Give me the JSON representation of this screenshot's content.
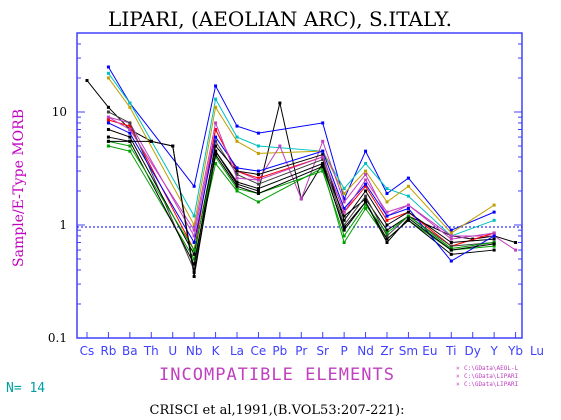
{
  "chart_data": {
    "type": "line",
    "title": "LIPARI, (AEOLIAN ARC), S.ITALY.",
    "ylabel": "Sample/E-Type MORB",
    "xlabel": "INCOMPATIBLE ELEMENTS",
    "footer": "CRISCI et al,1991,(B.VOL53:207-221):",
    "n_label": "N= 14",
    "yscale": "log",
    "ylim": [
      0.1,
      50
    ],
    "yticks": [
      0.1,
      1,
      10
    ],
    "ytick_labels": [
      "0.1",
      "1",
      "10"
    ],
    "reference_line": 1,
    "categories": [
      "Cs",
      "Rb",
      "Ba",
      "Th",
      "U",
      "Nb",
      "K",
      "La",
      "Ce",
      "Pb",
      "Pr",
      "Sr",
      "P",
      "Nd",
      "Zr",
      "Sm",
      "Eu",
      "Ti",
      "Dy",
      "Y",
      "Yb",
      "Lu"
    ],
    "legend": [
      {
        "label": "C:\\GData\\AEOL-L",
        "color": "#c040c0"
      },
      {
        "label": "C:\\GData\\LIPARI",
        "color": "#c040c0"
      },
      {
        "label": "C:\\GData\\LIPARI",
        "color": "#c040c0"
      }
    ],
    "series": [
      {
        "color": "#000000",
        "values": [
          19,
          11,
          7,
          5.5,
          5,
          0.35,
          4.5,
          2.3,
          2,
          12,
          1.7,
          3.5,
          1.2,
          1.7,
          0.9,
          1.2,
          null,
          0.8,
          0.75,
          0.8,
          0.7,
          null
        ]
      },
      {
        "color": "#0000ff",
        "values": [
          null,
          25,
          12,
          null,
          null,
          2.2,
          17,
          7.5,
          6.5,
          null,
          null,
          8,
          1.7,
          4.5,
          1.9,
          2.6,
          null,
          0.9,
          null,
          1.3,
          null,
          null
        ]
      },
      {
        "color": "#00c0c0",
        "values": [
          null,
          22,
          12,
          null,
          null,
          1.2,
          13,
          6,
          5,
          null,
          null,
          4.5,
          2.1,
          3.5,
          2.1,
          1.8,
          null,
          0.8,
          null,
          1.1,
          null,
          null
        ]
      },
      {
        "color": "#c0a000",
        "values": [
          null,
          20,
          11,
          null,
          null,
          1.0,
          11,
          5.5,
          4.3,
          null,
          null,
          4.5,
          1.9,
          3,
          1.6,
          2.2,
          null,
          0.85,
          null,
          1.5,
          null,
          null
        ]
      },
      {
        "color": "#c040c0",
        "values": [
          null,
          9,
          8,
          null,
          null,
          0.8,
          7,
          3,
          2.5,
          5,
          1.7,
          5.5,
          1.6,
          2.8,
          1.2,
          1.5,
          null,
          0.8,
          null,
          0.8,
          0.6,
          null
        ]
      },
      {
        "color": "#ff0000",
        "values": [
          null,
          8.5,
          7.5,
          null,
          null,
          0.6,
          7,
          3,
          2.6,
          null,
          null,
          4,
          1.3,
          2.2,
          1.1,
          1.3,
          null,
          0.65,
          null,
          0.85,
          null,
          null
        ]
      },
      {
        "color": "#00a000",
        "values": [
          null,
          5,
          4.5,
          null,
          null,
          0.5,
          3.5,
          2,
          1.6,
          null,
          null,
          3.2,
          0.7,
          1.4,
          0.75,
          1.1,
          null,
          0.6,
          null,
          0.65,
          null,
          null
        ]
      },
      {
        "color": "#404040",
        "values": [
          null,
          10,
          8,
          null,
          null,
          0.4,
          5.5,
          2.8,
          2.3,
          null,
          null,
          3.8,
          1.0,
          1.8,
          0.8,
          1.2,
          null,
          0.65,
          null,
          0.7,
          null,
          null
        ]
      },
      {
        "color": "#000000",
        "values": [
          null,
          6,
          5.5,
          null,
          null,
          0.45,
          4.5,
          2.4,
          2.1,
          null,
          null,
          3.5,
          0.9,
          1.6,
          0.75,
          1.1,
          null,
          0.55,
          null,
          0.6,
          null,
          null
        ]
      },
      {
        "color": "#000000",
        "values": [
          null,
          7,
          6,
          null,
          null,
          0.55,
          5,
          3,
          2.8,
          null,
          null,
          4.2,
          1.1,
          2,
          1.0,
          1.3,
          null,
          0.7,
          null,
          0.75,
          null,
          null
        ]
      },
      {
        "color": "#0000ff",
        "values": [
          null,
          8,
          6.5,
          null,
          null,
          0.7,
          6,
          3.2,
          3,
          null,
          null,
          4.5,
          1.4,
          2.3,
          1.2,
          1.4,
          null,
          0.48,
          null,
          0.8,
          null,
          null
        ]
      },
      {
        "color": "#c040c0",
        "values": [
          null,
          9,
          7,
          null,
          null,
          0.9,
          8,
          2.6,
          2.5,
          null,
          null,
          4,
          1.3,
          2.5,
          1.3,
          1.5,
          null,
          0.75,
          null,
          0.85,
          null,
          null
        ]
      },
      {
        "color": "#00a000",
        "values": [
          null,
          5.5,
          5,
          null,
          null,
          0.6,
          4,
          2.1,
          1.9,
          null,
          null,
          3.0,
          0.8,
          1.5,
          0.85,
          1.2,
          null,
          0.62,
          null,
          0.7,
          null,
          null
        ]
      },
      {
        "color": "#000000",
        "values": [
          null,
          5.5,
          5.5,
          5.5,
          5,
          0.38,
          4.2,
          2.2,
          1.9,
          null,
          null,
          3.3,
          0.95,
          1.6,
          0.7,
          1.15,
          null,
          0.6,
          null,
          0.68,
          null,
          null
        ]
      }
    ]
  }
}
